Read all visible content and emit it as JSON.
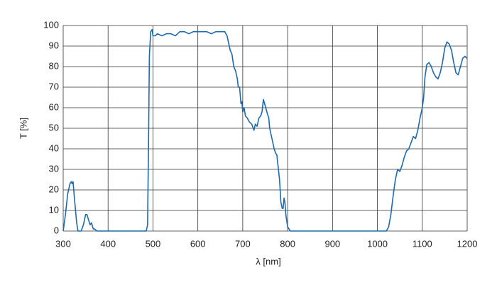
{
  "chart_data": {
    "type": "line",
    "x_label": "λ [nm]",
    "y_label": "T [%]",
    "xlim": [
      300,
      1200
    ],
    "xticks": [
      300,
      400,
      500,
      600,
      700,
      800,
      900,
      1000,
      1100,
      1200
    ],
    "ylim": [
      0,
      100
    ],
    "yticks": [
      0,
      10,
      20,
      30,
      40,
      50,
      60,
      70,
      80,
      90,
      100
    ],
    "grid": true,
    "series": [
      {
        "color": "#1f6aad",
        "x": [
          300,
          305,
          310,
          315,
          318,
          320,
          322,
          325,
          330,
          333,
          340,
          345,
          350,
          353,
          357,
          360,
          363,
          367,
          370,
          375,
          380,
          400,
          450,
          480,
          485,
          488,
          490,
          492,
          495,
          498,
          500,
          505,
          510,
          520,
          530,
          540,
          550,
          560,
          570,
          580,
          590,
          600,
          610,
          620,
          630,
          640,
          650,
          660,
          665,
          668,
          672,
          676,
          680,
          684,
          688,
          690,
          693,
          696,
          698,
          700,
          703,
          706,
          710,
          715,
          720,
          725,
          728,
          732,
          736,
          740,
          743,
          746,
          750,
          755,
          758,
          760,
          765,
          770,
          773,
          776,
          778,
          782,
          785,
          788,
          790,
          792,
          794,
          796,
          798,
          800,
          803,
          806,
          810,
          850,
          900,
          950,
          1000,
          1020,
          1025,
          1030,
          1035,
          1040,
          1045,
          1050,
          1055,
          1060,
          1065,
          1070,
          1075,
          1080,
          1085,
          1090,
          1095,
          1100,
          1103,
          1106,
          1110,
          1115,
          1120,
          1125,
          1130,
          1135,
          1140,
          1145,
          1150,
          1155,
          1160,
          1165,
          1170,
          1175,
          1180,
          1185,
          1190,
          1195,
          1200
        ],
        "values": [
          0,
          8,
          18,
          23,
          24,
          23,
          24,
          16,
          4,
          0,
          0,
          3,
          8,
          8,
          5,
          3,
          4,
          1,
          1,
          0,
          0,
          0,
          0,
          0,
          0,
          3,
          40,
          85,
          97,
          98,
          95,
          95,
          96,
          95,
          96,
          96,
          95,
          97,
          97,
          96,
          97,
          97,
          97,
          97,
          96,
          97,
          97,
          97,
          95,
          92,
          88,
          86,
          80,
          78,
          74,
          70,
          70,
          62,
          63,
          58,
          60,
          56,
          55,
          53,
          52,
          49,
          52,
          51,
          55,
          56,
          58,
          64,
          61,
          57,
          55,
          50,
          45,
          40,
          38,
          37,
          33,
          25,
          14,
          11,
          11,
          16,
          14,
          8,
          5,
          2,
          1,
          0,
          0,
          0,
          0,
          0,
          0,
          0,
          2,
          8,
          17,
          25,
          30,
          29,
          32,
          36,
          39,
          40,
          43,
          46,
          45,
          49,
          55,
          60,
          65,
          75,
          81,
          82,
          80,
          77,
          75,
          74,
          77,
          82,
          89,
          92,
          91,
          88,
          82,
          77,
          76,
          80,
          84,
          85,
          84
        ]
      }
    ]
  }
}
